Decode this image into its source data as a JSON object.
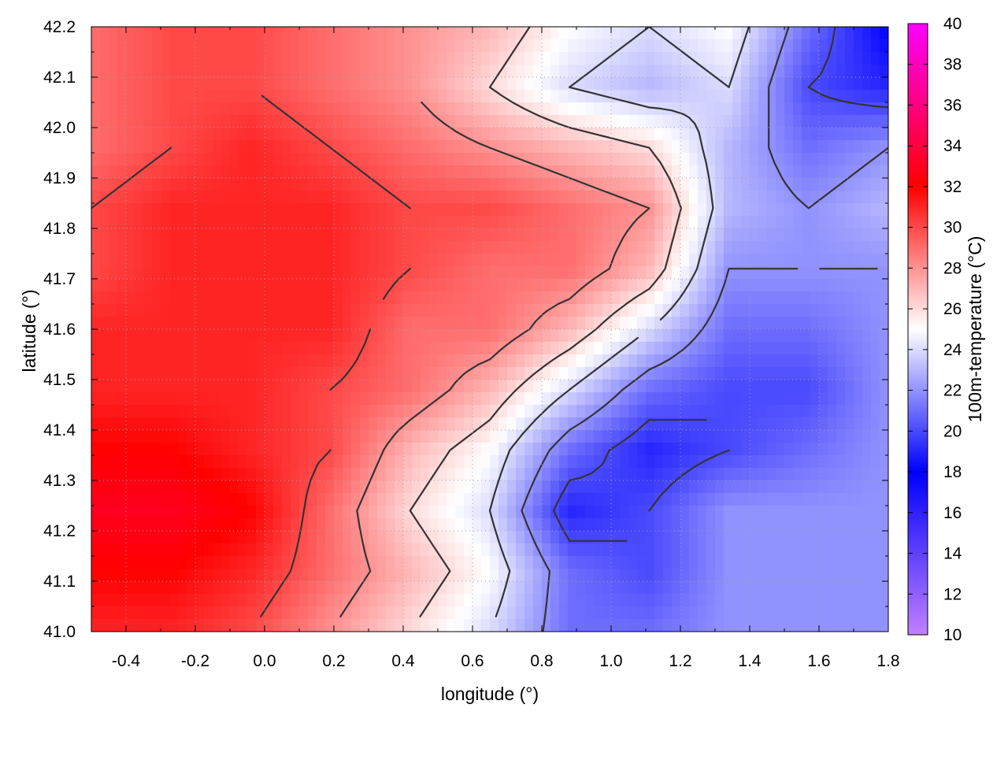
{
  "chart_data": {
    "type": "heatmap",
    "title": "",
    "xlabel": "longitude (°)",
    "ylabel": "latitude (°)",
    "colorbar_label": "100m-temperature (°C)",
    "xlim": [
      -0.5,
      1.8
    ],
    "ylim": [
      41.0,
      42.2
    ],
    "zlim": [
      10,
      40
    ],
    "x_ticks": [
      -0.4,
      -0.2,
      0.0,
      0.2,
      0.4,
      0.6,
      0.8,
      1.0,
      1.2,
      1.4,
      1.6,
      1.8
    ],
    "x_tick_labels": [
      "-0.4",
      "-0.2",
      "0.0",
      "0.2",
      "0.4",
      "0.6",
      "0.8",
      "1.0",
      "1.2",
      "1.4",
      "1.6",
      "1.8"
    ],
    "y_ticks": [
      41.0,
      41.1,
      41.2,
      41.3,
      41.4,
      41.5,
      41.6,
      41.7,
      41.8,
      41.9,
      42.0,
      42.1,
      42.2
    ],
    "y_tick_labels": [
      "41.0",
      "41.1",
      "41.2",
      "41.3",
      "41.4",
      "41.5",
      "41.6",
      "41.7",
      "41.8",
      "41.9",
      "42.0",
      "42.1",
      "42.2"
    ],
    "colorbar_ticks": [
      10,
      12,
      14,
      16,
      18,
      20,
      22,
      24,
      26,
      28,
      30,
      32,
      34,
      36,
      38,
      40
    ],
    "colorbar_tick_labels": [
      "10",
      "12",
      "14",
      "16",
      "18",
      "20",
      "22",
      "24",
      "26",
      "28",
      "30",
      "32",
      "34",
      "36",
      "38",
      "40"
    ],
    "colormap": [
      {
        "value": 10,
        "color": "#c080ff"
      },
      {
        "value": 18,
        "color": "#0000ff"
      },
      {
        "value": 25,
        "color": "#ffffff"
      },
      {
        "value": 32,
        "color": "#ff0000"
      },
      {
        "value": 40,
        "color": "#ff00ff"
      }
    ],
    "grid": true,
    "grid_style": "dotted",
    "contours": true,
    "contour_color": "#333333",
    "contour_levels": [
      20,
      22,
      24,
      26,
      28,
      30
    ],
    "sample_grid": {
      "lon": [
        -0.5,
        -0.27,
        -0.04,
        0.19,
        0.42,
        0.65,
        0.88,
        1.11,
        1.34,
        1.57,
        1.8
      ],
      "lat": [
        41.0,
        41.12,
        41.24,
        41.36,
        41.48,
        41.6,
        41.72,
        41.84,
        41.96,
        42.08,
        42.2
      ],
      "temperature": [
        [
          31,
          31,
          30,
          28,
          26,
          24,
          21,
          21,
          22,
          22,
          22
        ],
        [
          32,
          32,
          31,
          29,
          27,
          25,
          21,
          20,
          22,
          22,
          22
        ],
        [
          33,
          33,
          32,
          29,
          26,
          24,
          19,
          20,
          22,
          22,
          22
        ],
        [
          32,
          32,
          31,
          30,
          27,
          25,
          21,
          19,
          20,
          21,
          22
        ],
        [
          31,
          31,
          31,
          30,
          29,
          27,
          24,
          21,
          20,
          20,
          22
        ],
        [
          31,
          31,
          31,
          31,
          29,
          29,
          27,
          24,
          21,
          21,
          22
        ],
        [
          30,
          31,
          31,
          31,
          30,
          29,
          29,
          27,
          22,
          22,
          22
        ],
        [
          30,
          31,
          31,
          31,
          30,
          30,
          29,
          28,
          23,
          22,
          23
        ],
        [
          29,
          30,
          31,
          30,
          29,
          28,
          27,
          26,
          23,
          21,
          22
        ],
        [
          29,
          30,
          30,
          29,
          28,
          26,
          24,
          23,
          24,
          20,
          19
        ],
        [
          29,
          30,
          30,
          29,
          28,
          27,
          25,
          24,
          25,
          21,
          18
        ]
      ]
    }
  }
}
